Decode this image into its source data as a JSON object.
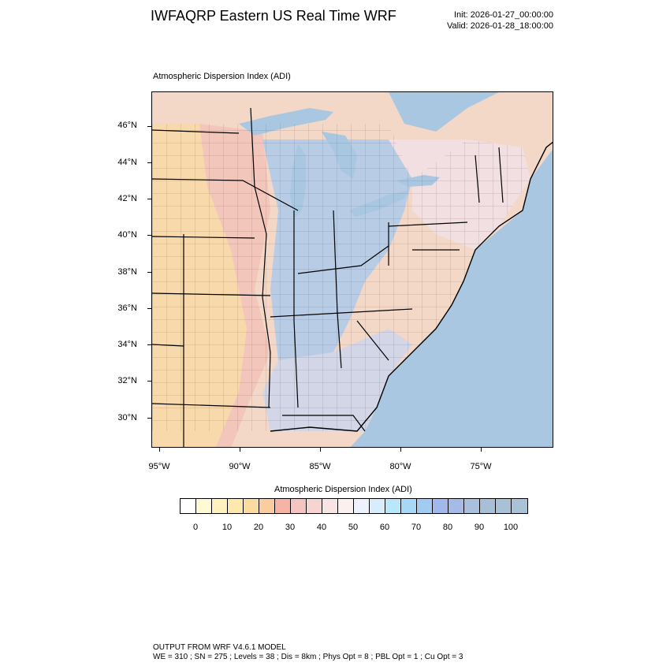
{
  "header": {
    "title": "IWFAQRP Eastern US Real Time WRF",
    "init": "Init: 2026-01-27_00:00:00",
    "valid": "Valid: 2026-01-28_18:00:00"
  },
  "map": {
    "label": "Atmospheric Dispersion Index   (ADI)",
    "lat_labels": [
      "46°N",
      "44°N",
      "42°N",
      "40°N",
      "38°N",
      "36°N",
      "34°N",
      "32°N",
      "30°N"
    ],
    "lon_labels": [
      "95°W",
      "90°W",
      "85°W",
      "80°W",
      "75°W"
    ],
    "colors": {
      "ocean": "#a9c7e0",
      "lake": "#a9c7e0",
      "low": "#f5d59c",
      "mid": "#f2c7c0",
      "high": "#b7cfe9",
      "border": "#000000"
    }
  },
  "colorbar": {
    "title": "Atmospheric Dispersion Index  (ADI)",
    "colors": [
      "#ffffff",
      "#fffad2",
      "#fff2be",
      "#fde9ad",
      "#fbdca0",
      "#f9cda0",
      "#f5b4a5",
      "#f4c5c0",
      "#f6d5d0",
      "#f8e4e2",
      "#fbf0f0",
      "#ecf2ff",
      "#d7edfb",
      "#b8e6fa",
      "#a7d9f6",
      "#a2cbf2",
      "#a1b8ec",
      "#a5bbe5",
      "#a8bfdd",
      "#a9bfd6",
      "#a9c1d6",
      "#aac1d6"
    ],
    "labels": [
      "0",
      "10",
      "20",
      "30",
      "40",
      "50",
      "60",
      "70",
      "80",
      "90",
      "100"
    ]
  },
  "footer": {
    "line1": "OUTPUT FROM WRF V4.6.1 MODEL",
    "line2": "WE = 310 ; SN = 275 ; Levels = 38 ; Dis = 8km ; Phys Opt = 8 ; PBL Opt = 1 ; Cu Opt = 3"
  }
}
